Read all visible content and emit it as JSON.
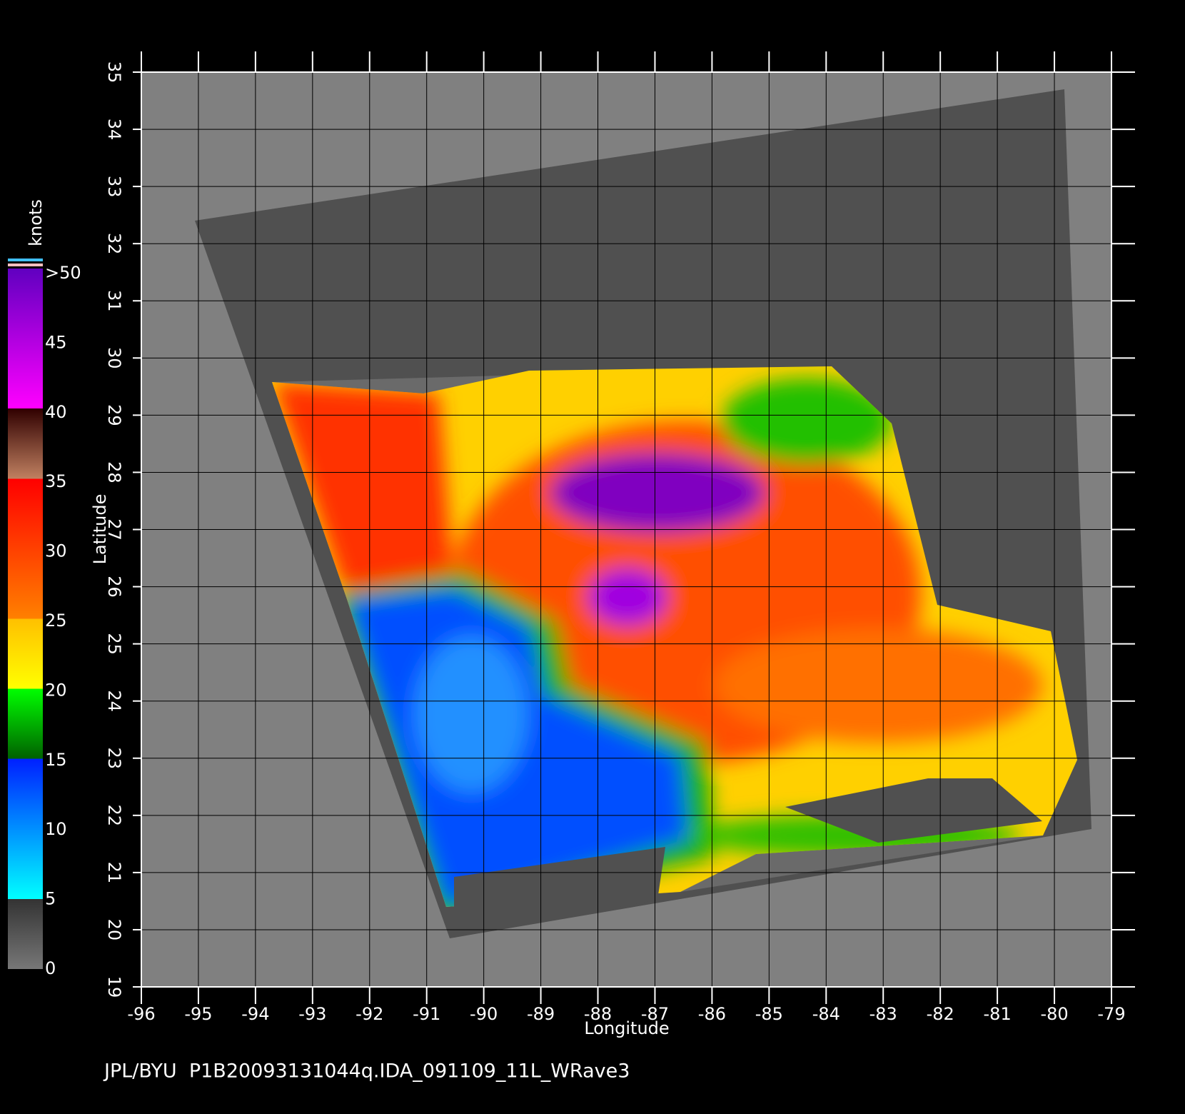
{
  "chart_data": {
    "type": "map",
    "xlabel": "Longitude",
    "ylabel": "Latitude",
    "xlim": [
      -96,
      -79
    ],
    "ylim": [
      19,
      35
    ],
    "xticks": [
      -96,
      -95,
      -94,
      -93,
      -92,
      -91,
      -90,
      -89,
      -88,
      -87,
      -86,
      -85,
      -84,
      -83,
      -82,
      -81,
      -80,
      -79
    ],
    "yticks": [
      19,
      20,
      21,
      22,
      23,
      24,
      25,
      26,
      27,
      28,
      29,
      30,
      31,
      32,
      33,
      34,
      35
    ],
    "grid": true,
    "colorbar": {
      "label": "knots",
      "lim": [
        0,
        50
      ],
      "ticks": [
        0,
        5,
        10,
        15,
        20,
        25,
        30,
        35,
        40,
        45,
        {
          "value": 50,
          "label": ">50"
        }
      ]
    },
    "footer": "JPL/BYU  P1B20093131044q.IDA_091109_11L_WRave3"
  }
}
